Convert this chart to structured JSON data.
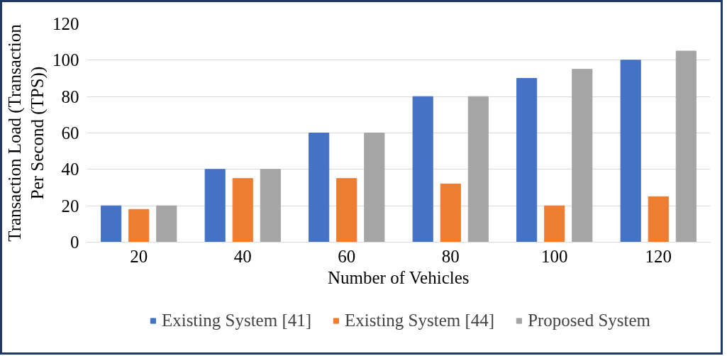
{
  "chart_data": {
    "type": "bar",
    "xlabel": "Number of Vehicles",
    "ylabel": "Transaction Load (Transaction Per Second (TPS))",
    "categories": [
      "20",
      "40",
      "60",
      "80",
      "100",
      "120"
    ],
    "series": [
      {
        "name": "Existing System [41]",
        "color": "#4472c4",
        "values": [
          20,
          40,
          60,
          80,
          90,
          100
        ]
      },
      {
        "name": "Existing System [44]",
        "color": "#ed7d31",
        "values": [
          18,
          35,
          35,
          32,
          20,
          25
        ]
      },
      {
        "name": "Proposed System",
        "color": "#a5a5a5",
        "values": [
          20,
          40,
          60,
          80,
          95,
          105
        ]
      }
    ],
    "ylim": [
      0,
      120
    ],
    "yticks": [
      0,
      20,
      40,
      60,
      80,
      100,
      120
    ],
    "grid": "y",
    "legend": "bottom"
  }
}
